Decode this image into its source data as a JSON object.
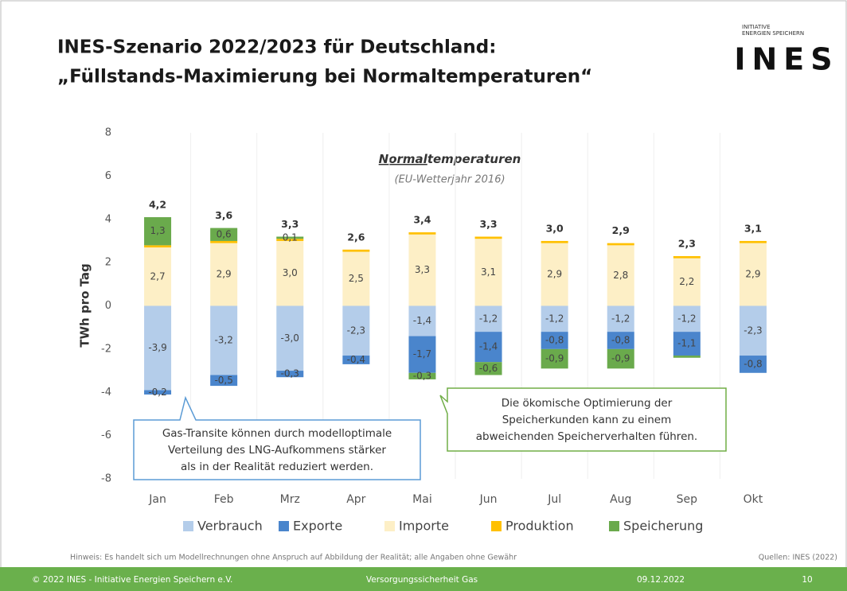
{
  "header": {
    "title_lines": [
      "INES-Szenario 2022/2023 für Deutschland:",
      "„Füllstands-Maximierung bei Normaltemperaturen“"
    ],
    "logo_small": [
      "INITIATIVE",
      "ENERGIEN SPEICHERN"
    ],
    "logo": "INES"
  },
  "chart_data": {
    "type": "stacked_bar",
    "ylabel": "TWh pro Tag",
    "annotation": {
      "underlined": "Normal",
      "rest": "temperaturen",
      "subtitle": "(EU-Wetterjahr 2016)"
    },
    "categories": [
      "Jan",
      "Feb",
      "Mrz",
      "Apr",
      "Mai",
      "Jun",
      "Jul",
      "Aug",
      "Sep",
      "Okt"
    ],
    "series": [
      {
        "name": "Verbrauch",
        "color": "#b4cdea",
        "values": [
          -3.9,
          -3.2,
          -3.0,
          -2.3,
          -1.4,
          -1.2,
          -1.2,
          -1.2,
          -1.2,
          -2.3
        ],
        "value_labels": [
          "-3,9",
          "-3,2",
          "-3,0",
          "-2,3",
          "-1,4",
          "-1,2",
          "-1,2",
          "-1,2",
          "-1,2",
          "-2,3"
        ]
      },
      {
        "name": "Exporte",
        "color": "#4a85cc",
        "values": [
          -0.2,
          -0.5,
          -0.3,
          -0.4,
          -1.7,
          -1.4,
          -0.8,
          -0.8,
          -1.1,
          -0.8
        ],
        "value_labels": [
          "-0,2",
          "-0,5",
          "-0,3",
          "-0,4",
          "-1,7",
          "-1,4",
          "-0,8",
          "-0,8",
          "-1,1",
          "-0,8"
        ]
      },
      {
        "name": "Importe",
        "color": "#fdefc6",
        "values": [
          2.7,
          2.9,
          3.0,
          2.5,
          3.3,
          3.1,
          2.9,
          2.8,
          2.2,
          2.9
        ],
        "value_labels": [
          "2,7",
          "2,9",
          "3,0",
          "2,5",
          "3,3",
          "3,1",
          "2,9",
          "2,8",
          "2,2",
          "2,9"
        ]
      },
      {
        "name": "Produktion",
        "color": "#ffc000",
        "values": [
          0.1,
          0.1,
          0.1,
          0.1,
          0.1,
          0.1,
          0.1,
          0.1,
          0.1,
          0.1
        ]
      },
      {
        "name": "Speicherung",
        "color": "#6aaa4c",
        "values": [
          1.3,
          0.6,
          0.1,
          null,
          -0.3,
          -0.6,
          -0.9,
          -0.9,
          -0.1,
          null
        ],
        "value_labels": [
          "1,3",
          "0,6",
          "0,1",
          null,
          "-0,3",
          "-0,6",
          "-0,9",
          "-0,9",
          null,
          null
        ]
      }
    ],
    "totals": [
      4.2,
      3.6,
      3.3,
      2.6,
      3.4,
      3.3,
      3.0,
      2.9,
      2.3,
      3.1
    ],
    "total_labels": [
      "4,2",
      "3,6",
      "3,3",
      "2,6",
      "3,4",
      "3,3",
      "3,0",
      "2,9",
      "2,3",
      "3,1"
    ],
    "ylim": [
      -8,
      8
    ],
    "yticks": [
      -8,
      -6,
      -4,
      -2,
      0,
      2,
      4,
      6,
      8
    ],
    "legend": "bottom",
    "callouts": [
      {
        "lines": [
          "Gas-Transite können durch modelloptimale",
          "Verteilung des LNG-Aufkommens stärker",
          "als in der Realität reduziert werden."
        ]
      },
      {
        "lines": [
          "Die ökomische Optimierung der",
          "Speicherkunden kann zu einem",
          "abweichenden Speicherverhalten führen."
        ]
      }
    ]
  },
  "notes": {
    "disclaimer": "Hinweis: Es handelt sich um Modellrechnungen ohne Anspruch auf Abbildung der Realität; alle Angaben ohne Gewähr",
    "source": "Quellen: INES (2022)"
  },
  "footer": {
    "copyright": "© 2022 INES - Initiative Energien Speichern e.V.",
    "topic": "Versorgungssicherheit Gas",
    "date": "09.12.2022",
    "page": "10"
  }
}
